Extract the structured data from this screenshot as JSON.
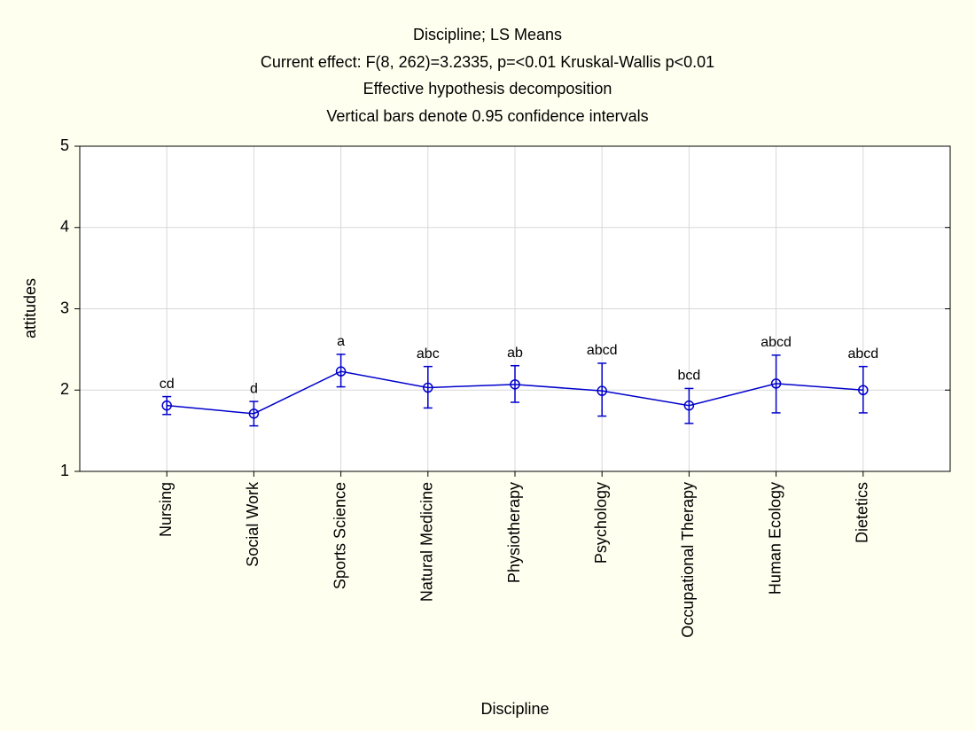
{
  "chart_data": {
    "type": "line",
    "title": "Discipline; LS Means",
    "subtitle": [
      "Current effect: F(8, 262)=3.2335, p=<0.01 Kruskal-Wallis p<0.01",
      "Effective hypothesis decomposition",
      "Vertical bars denote 0.95 confidence intervals"
    ],
    "x_label": "Discipline",
    "y_label": "attitudes",
    "categories": [
      "Nursing",
      "Social Work",
      "Sports Science",
      "Natural Medicine",
      "Physiotherapy",
      "Psychology",
      "Occupational Therapy",
      "Human Ecology",
      "Dietetics"
    ],
    "series": [
      {
        "name": "attitudes",
        "color": "#0000cc",
        "values": [
          1.81,
          1.71,
          2.23,
          2.03,
          2.07,
          1.99,
          1.81,
          2.08,
          2.0
        ],
        "lower": [
          1.7,
          1.56,
          2.04,
          1.78,
          1.85,
          1.68,
          1.59,
          1.72,
          1.72
        ],
        "upper": [
          1.92,
          1.86,
          2.44,
          2.29,
          2.3,
          2.33,
          2.02,
          2.43,
          2.29
        ],
        "annotations": [
          "cd",
          "d",
          "a",
          "abc",
          "ab",
          "abcd",
          "bcd",
          "abcd",
          "abcd"
        ]
      }
    ],
    "ylim": [
      1,
      5
    ],
    "yticks": [
      1,
      2,
      3,
      4,
      5
    ],
    "grid": true
  }
}
